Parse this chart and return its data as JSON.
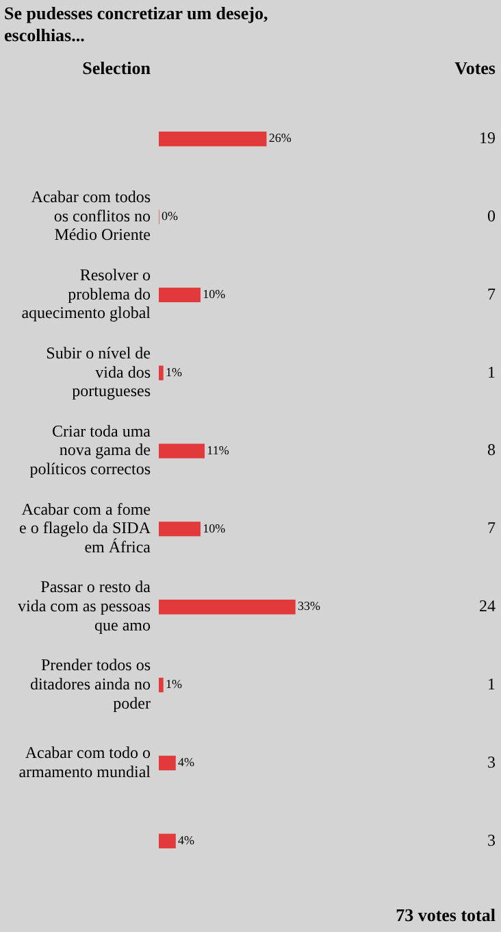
{
  "chart_data": {
    "type": "bar",
    "orientation": "horizontal",
    "title": "Se pudesses concretizar um desejo, escolhias...",
    "ylabel": "Selection",
    "categories": [
      null,
      "Acabar com todos os conflitos no Médio Oriente",
      "Resolver o problema do aquecimento global",
      "Subir o nível de vida dos portugueses",
      "Criar toda uma nova gama de políticos correctos",
      "Acabar com a fome e o flagelo da SIDA em África",
      "Passar o resto da vida com as pessoas que amo",
      "Prender todos os ditadores ainda no poder",
      "Acabar com todo o armamento mundial",
      null
    ],
    "values": [
      26,
      0,
      10,
      1,
      11,
      10,
      33,
      1,
      4,
      4
    ],
    "value_labels": [
      "26%",
      "0%",
      "10%",
      "1%",
      "11%",
      "10%",
      "33%",
      "1%",
      "4%",
      "4%"
    ],
    "color": "#e23a3a",
    "grid": false,
    "legend": false,
    "annotations": [
      "Votes",
      "19",
      "0",
      "7",
      "1",
      "8",
      "7",
      "24",
      "1",
      "3",
      "3",
      "73 votes total"
    ]
  }
}
